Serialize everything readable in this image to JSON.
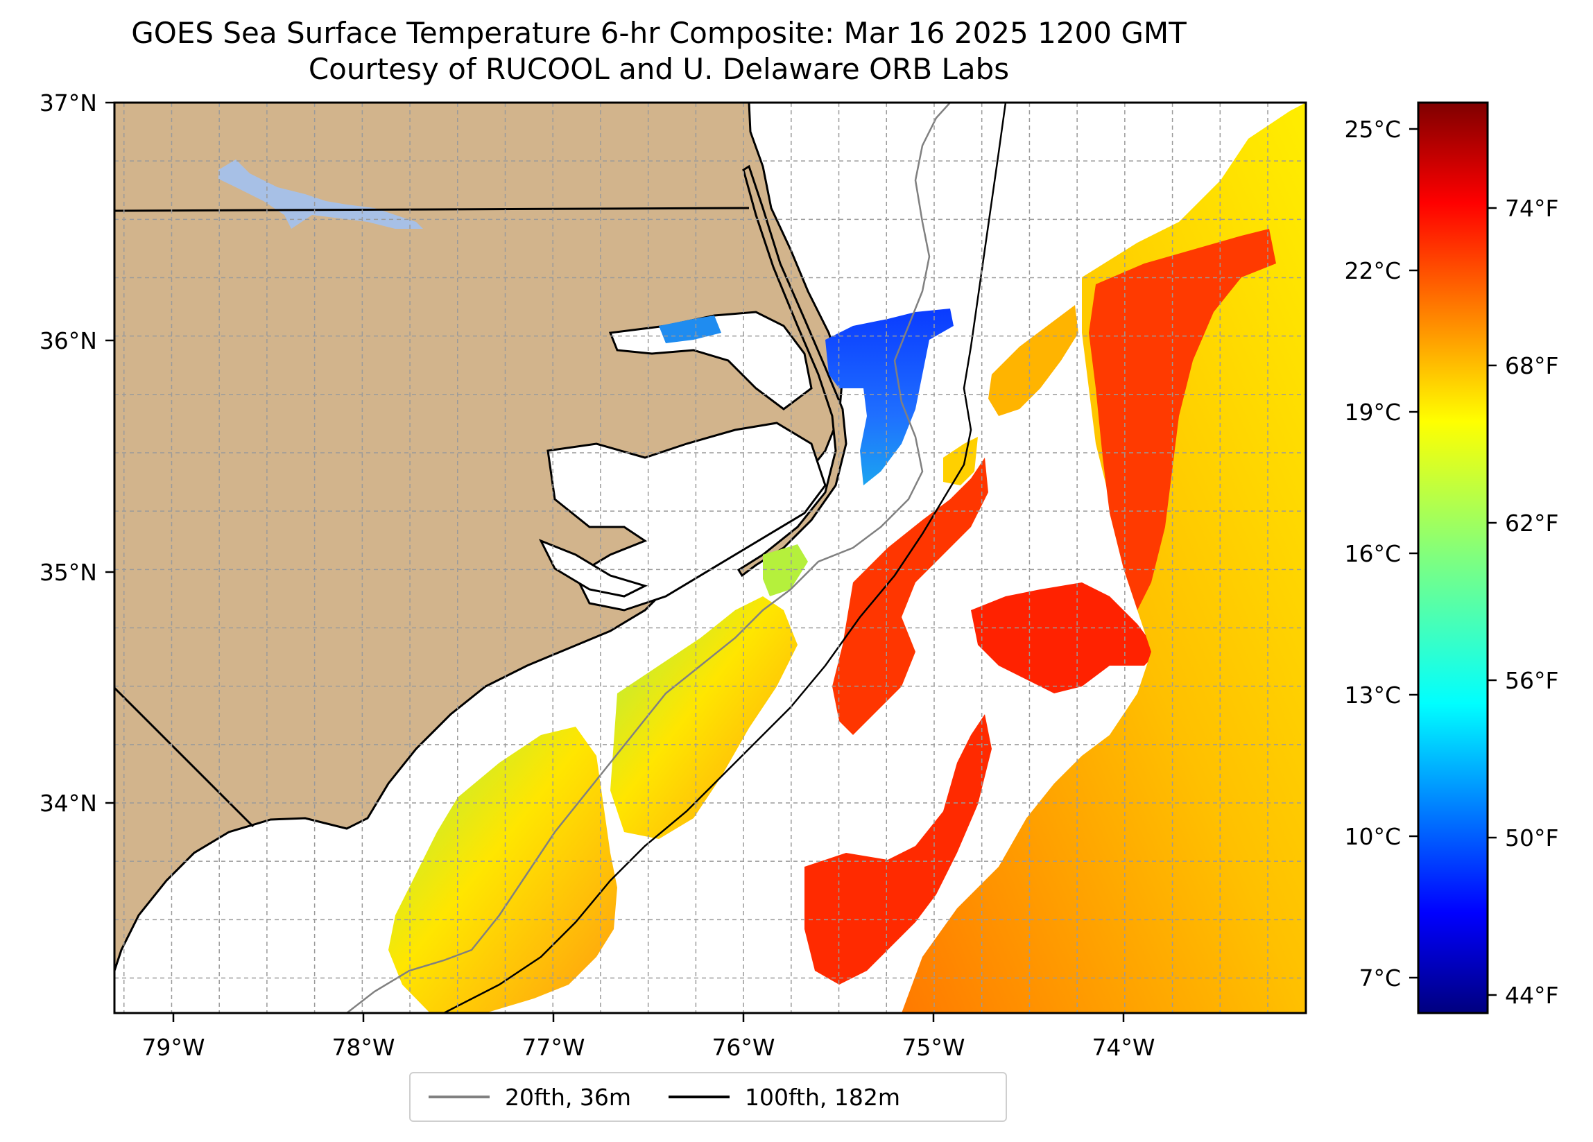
{
  "title": {
    "line1": "GOES Sea Surface Temperature 6-hr Composite: Mar 16 2025 1200 GMT",
    "line2": "Courtesy of RUCOOL and U. Delaware ORB Labs"
  },
  "map": {
    "lon_range": [
      -79.3,
      -73.05
    ],
    "lat_range": [
      33.1,
      37.0
    ],
    "lon_ticks": [
      "79°W",
      "78°W",
      "77°W",
      "76°W",
      "75°W",
      "74°W"
    ],
    "lat_ticks": [
      "37°N",
      "36°N",
      "35°N",
      "34°N"
    ],
    "land_color": "#d2b48c",
    "lake_color": "#a7c0e6",
    "grid": "dashed"
  },
  "colorbar": {
    "colormap": "jet",
    "celsius_ticks": [
      "25°C",
      "22°C",
      "19°C",
      "16°C",
      "13°C",
      "10°C",
      "7°C"
    ],
    "fahrenheit_ticks": [
      "74°F",
      "68°F",
      "62°F",
      "56°F",
      "50°F",
      "44°F"
    ]
  },
  "legend": {
    "items": [
      {
        "label": "20fth, 36m",
        "color": "#808080"
      },
      {
        "label": "100fth, 182m",
        "color": "#000000"
      }
    ]
  }
}
